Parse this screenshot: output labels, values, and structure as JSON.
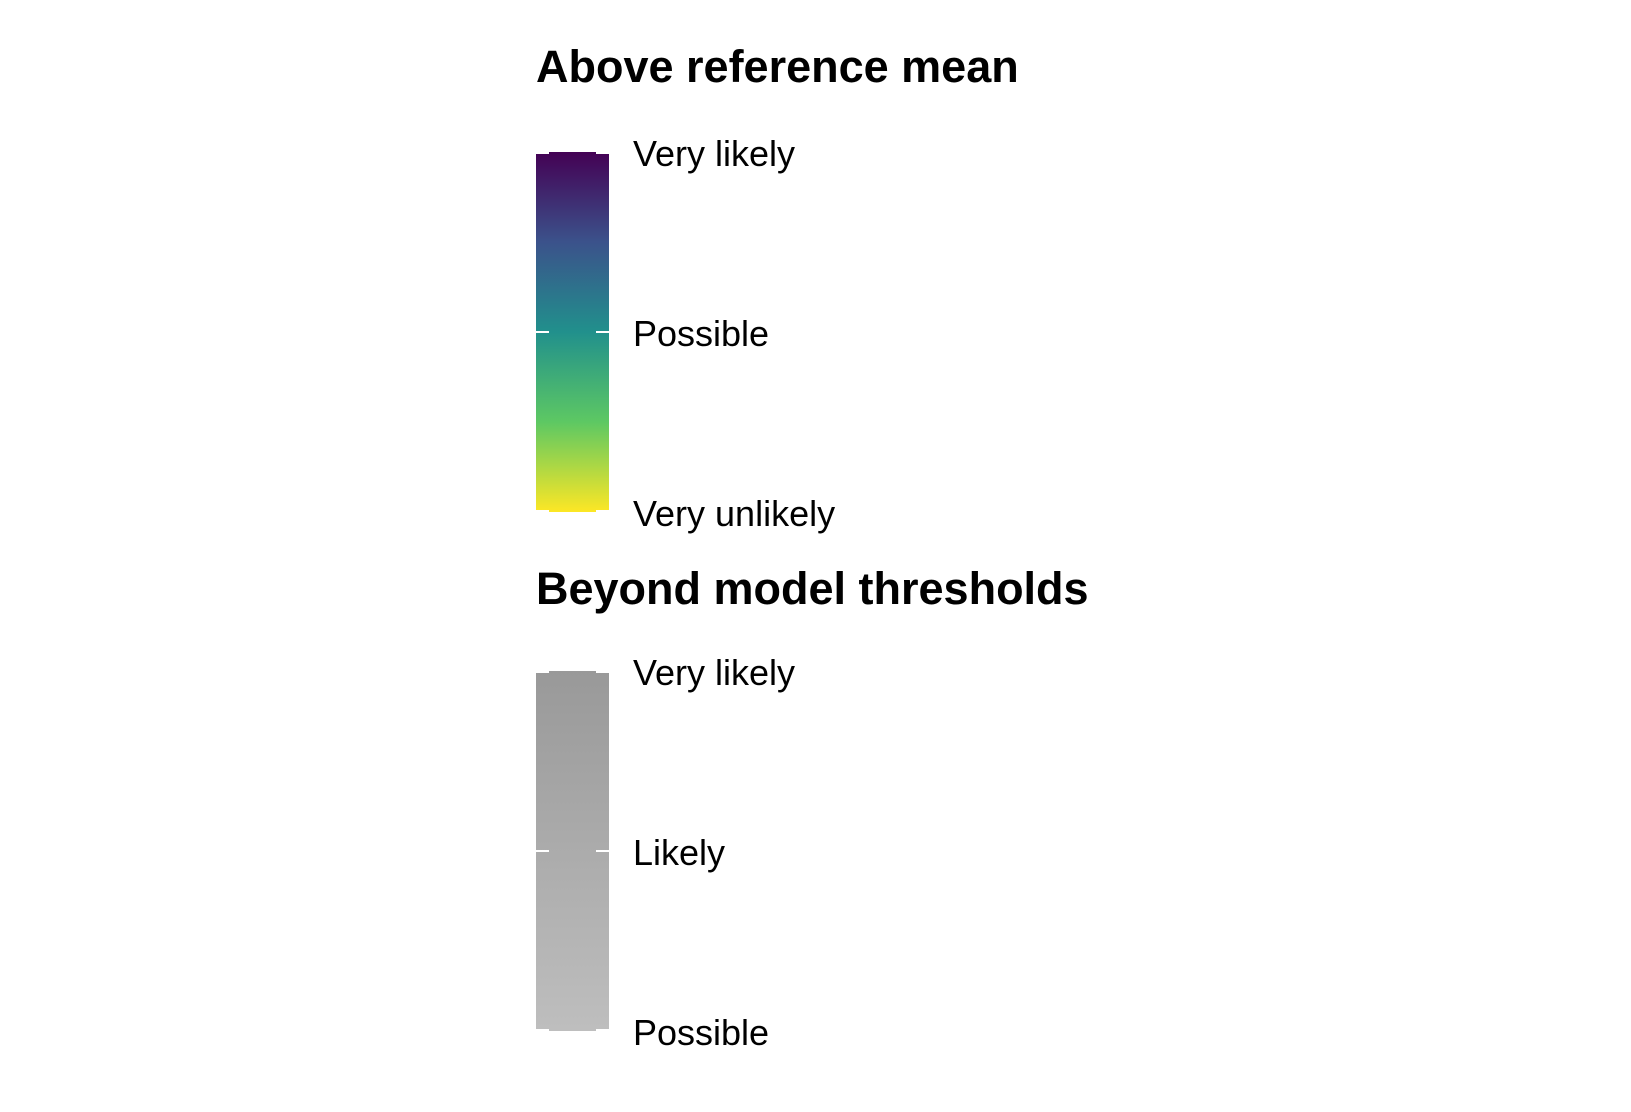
{
  "chart_data": [
    {
      "type": "colorbar",
      "title": "Above reference mean",
      "ticks": [
        "Very likely",
        "Possible",
        "Very unlikely"
      ],
      "tick_fractions_from_top": [
        0,
        0.5,
        1
      ],
      "gradient_colors_top_to_bottom": [
        "#440154",
        "#3b528b",
        "#21908c",
        "#5dc863",
        "#fde725"
      ],
      "gradient_stops": [
        0,
        0.25,
        0.5,
        0.75,
        1
      ]
    },
    {
      "type": "colorbar",
      "title": "Beyond model thresholds",
      "ticks": [
        "Very likely",
        "Likely",
        "Possible"
      ],
      "tick_fractions_from_top": [
        0,
        0.5,
        1
      ],
      "gradient_colors_top_to_bottom": [
        "#999999",
        "#bebebe"
      ],
      "gradient_stops": [
        0,
        1
      ]
    }
  ]
}
